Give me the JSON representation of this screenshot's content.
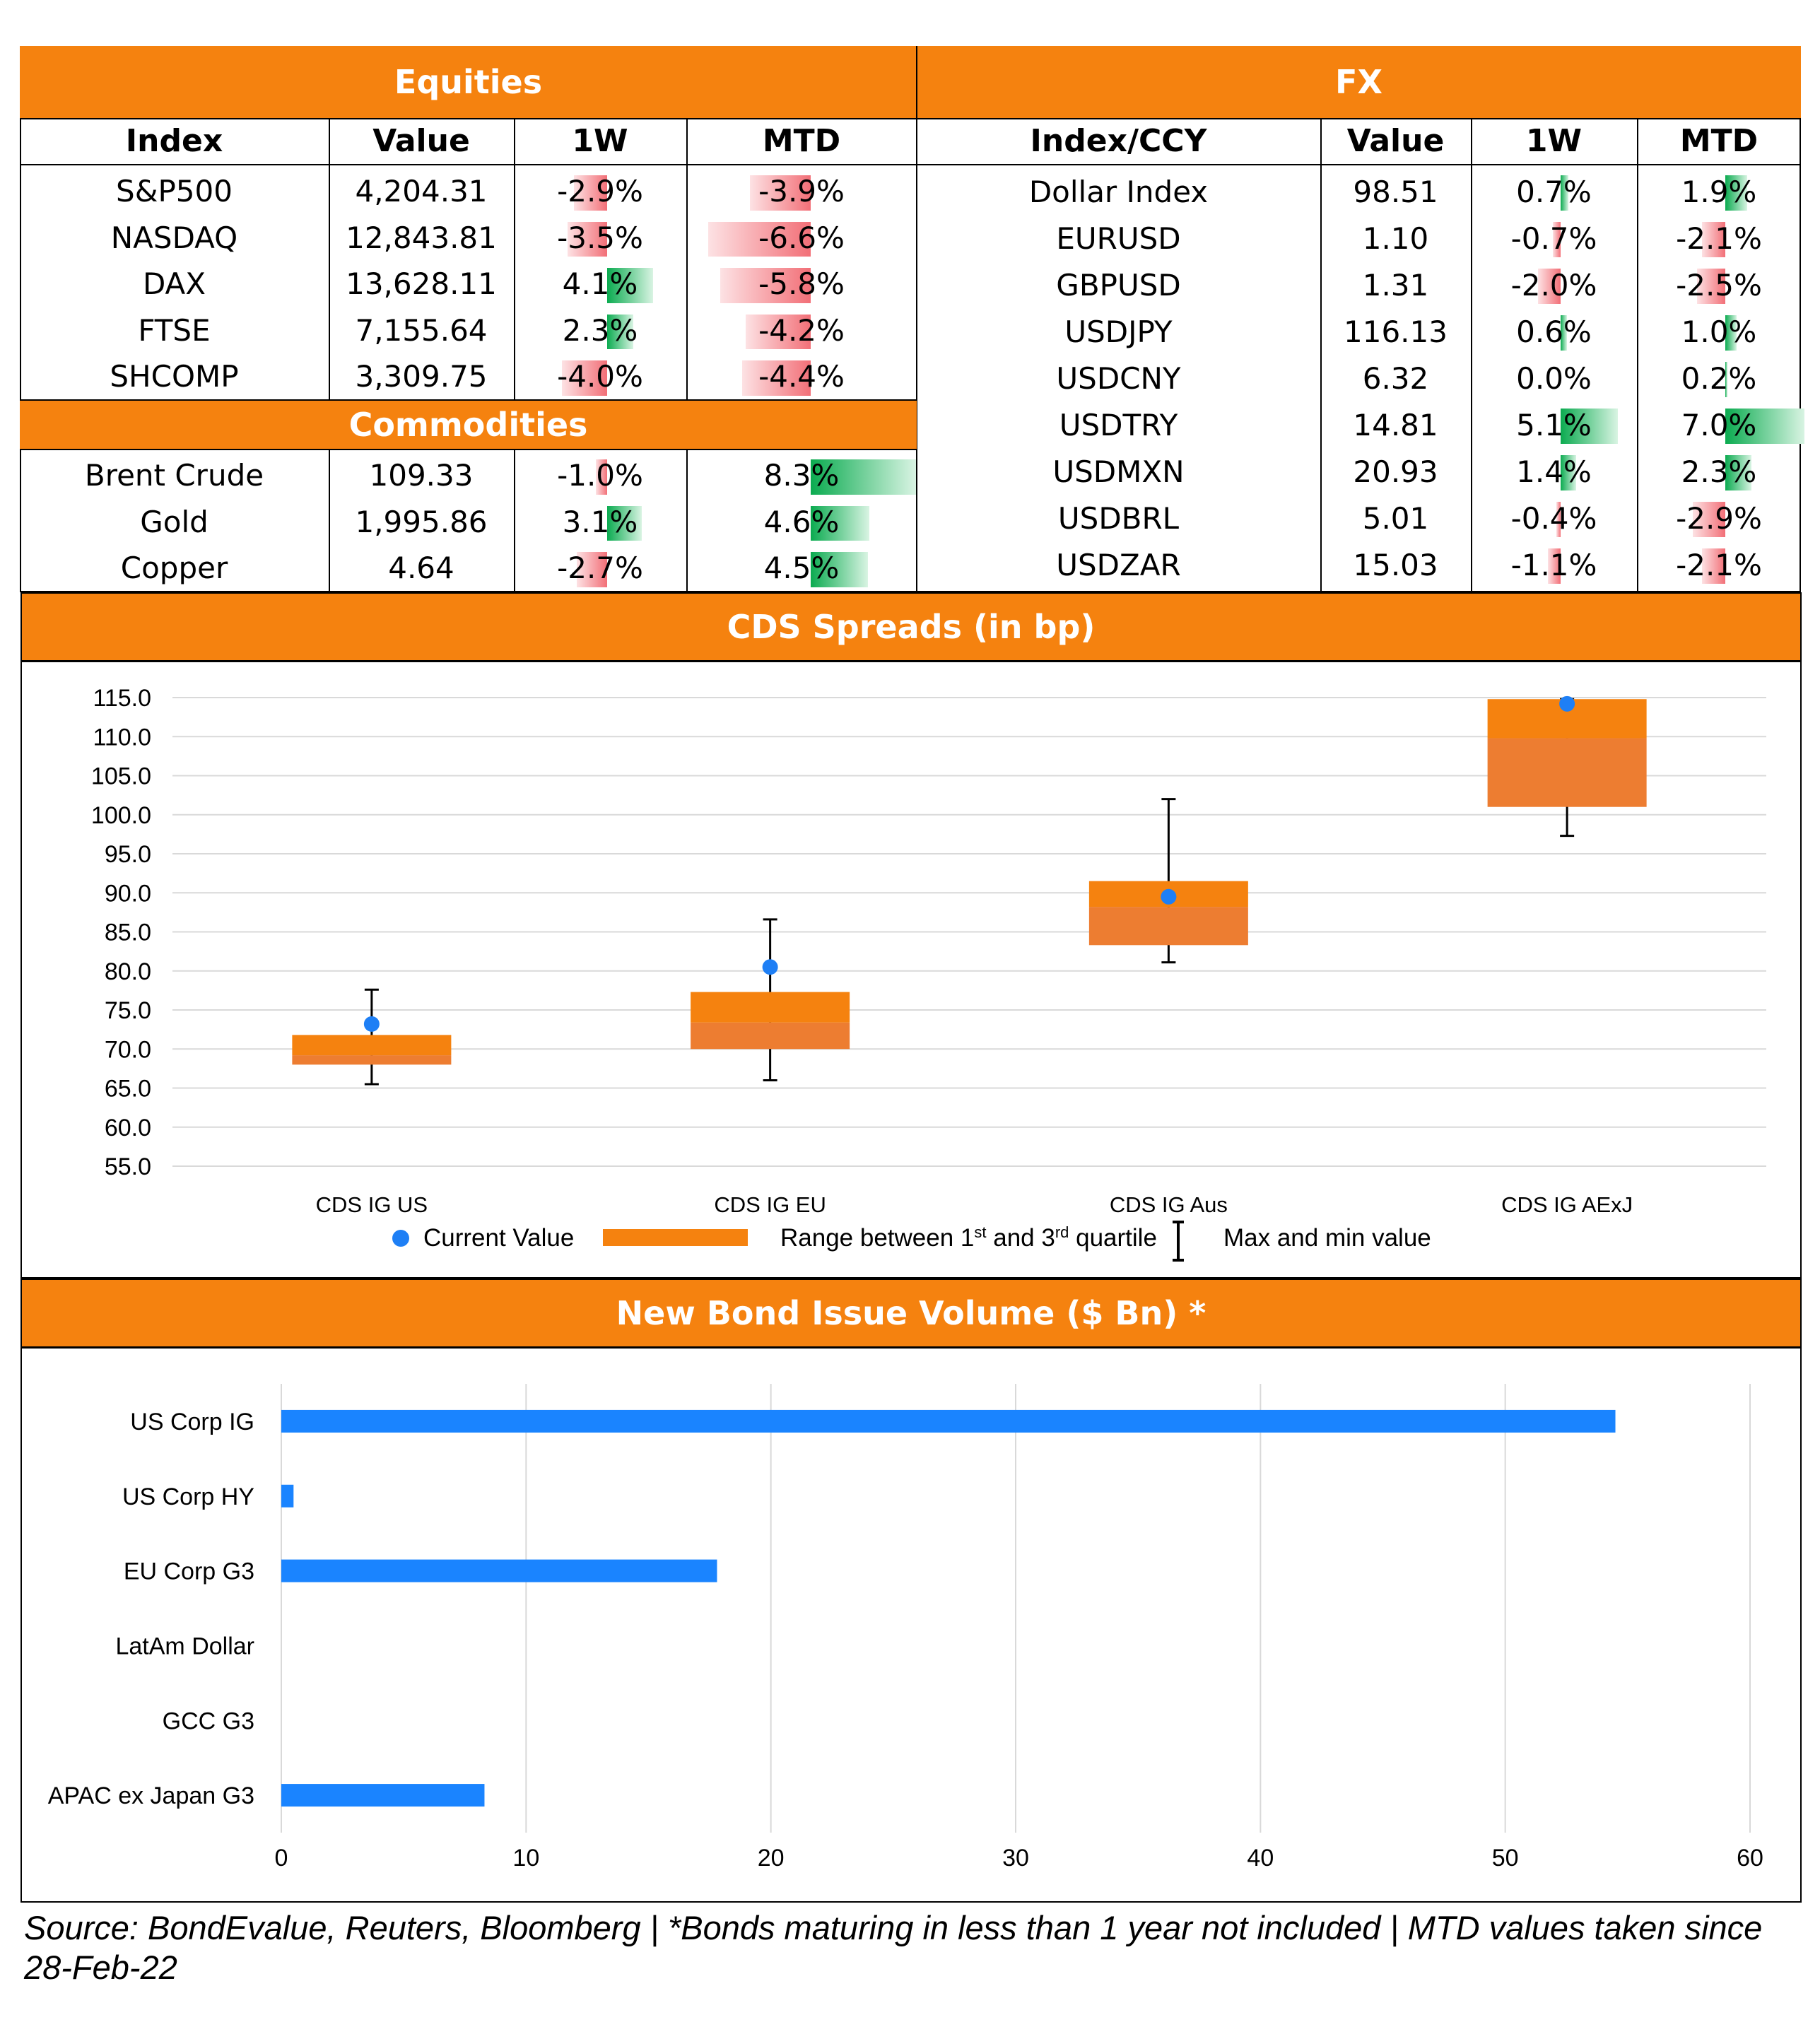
{
  "equities": {
    "title": "Equities",
    "columns": [
      "Index",
      "Value",
      "1W",
      "MTD"
    ],
    "rows": [
      {
        "name": "S&P500",
        "value": "4,204.31",
        "w1": "-2.9%",
        "mtd": "-3.9%",
        "w1v": -2.9,
        "mtdv": -3.9
      },
      {
        "name": "NASDAQ",
        "value": "12,843.81",
        "w1": "-3.5%",
        "mtd": "-6.6%",
        "w1v": -3.5,
        "mtdv": -6.6
      },
      {
        "name": "DAX",
        "value": "13,628.11",
        "w1": "4.1%",
        "mtd": "-5.8%",
        "w1v": 4.1,
        "mtdv": -5.8
      },
      {
        "name": "FTSE",
        "value": "7,155.64",
        "w1": "2.3%",
        "mtd": "-4.2%",
        "w1v": 2.3,
        "mtdv": -4.2
      },
      {
        "name": "SHCOMP",
        "value": "3,309.75",
        "w1": "-4.0%",
        "mtd": "-4.4%",
        "w1v": -4.0,
        "mtdv": -4.4
      }
    ]
  },
  "commodities": {
    "title": "Commodities",
    "rows": [
      {
        "name": "Brent Crude",
        "value": "109.33",
        "w1": "-1.0%",
        "mtd": "8.3%",
        "w1v": -1.0,
        "mtdv": 8.3
      },
      {
        "name": "Gold",
        "value": "1,995.86",
        "w1": "3.1%",
        "mtd": "4.6%",
        "w1v": 3.1,
        "mtdv": 4.6
      },
      {
        "name": "Copper",
        "value": "4.64",
        "w1": "-2.7%",
        "mtd": "4.5%",
        "w1v": -2.7,
        "mtdv": 4.5
      }
    ]
  },
  "fx": {
    "title": "FX",
    "columns": [
      "Index/CCY",
      "Value",
      "1W",
      "MTD"
    ],
    "rows": [
      {
        "name": "Dollar Index",
        "value": "98.51",
        "w1": "0.7%",
        "mtd": "1.9%",
        "w1v": 0.7,
        "mtdv": 1.9
      },
      {
        "name": "EURUSD",
        "value": "1.10",
        "w1": "-0.7%",
        "mtd": "-2.1%",
        "w1v": -0.7,
        "mtdv": -2.1
      },
      {
        "name": "GBPUSD",
        "value": "1.31",
        "w1": "-2.0%",
        "mtd": "-2.5%",
        "w1v": -2.0,
        "mtdv": -2.5
      },
      {
        "name": "USDJPY",
        "value": "116.13",
        "w1": "0.6%",
        "mtd": "1.0%",
        "w1v": 0.6,
        "mtdv": 1.0
      },
      {
        "name": "USDCNY",
        "value": "6.32",
        "w1": "0.0%",
        "mtd": "0.2%",
        "w1v": 0.0,
        "mtdv": 0.2
      },
      {
        "name": "USDTRY",
        "value": "14.81",
        "w1": "5.1%",
        "mtd": "7.0%",
        "w1v": 5.1,
        "mtdv": 7.0
      },
      {
        "name": "USDMXN",
        "value": "20.93",
        "w1": "1.4%",
        "mtd": "2.3%",
        "w1v": 1.4,
        "mtdv": 2.3
      },
      {
        "name": "USDBRL",
        "value": "5.01",
        "w1": "-0.4%",
        "mtd": "-2.9%",
        "w1v": -0.4,
        "mtdv": -2.9
      },
      {
        "name": "USDZAR",
        "value": "15.03",
        "w1": "-1.1%",
        "mtd": "-2.1%",
        "w1v": -1.1,
        "mtdv": -2.1
      }
    ]
  },
  "colors": {
    "header_orange": "#f5820f",
    "box_orange": "#ed7d31",
    "point_blue": "#1e7ff5",
    "bar_blue": "#1a84ff",
    "positive_green": "#0bab50",
    "negative_red": "#f26f77"
  },
  "chart_data": [
    {
      "type": "box",
      "title": "CDS Spreads (in bp)",
      "categories": [
        "CDS IG US",
        "CDS IG EU",
        "CDS IG Aus",
        "CDS IG AExJ"
      ],
      "q1": [
        68.0,
        70.0,
        83.3,
        101.0
      ],
      "median": [
        69.2,
        73.4,
        88.2,
        109.8
      ],
      "q3": [
        71.8,
        77.3,
        91.5,
        114.8
      ],
      "min": [
        65.5,
        66.0,
        81.1,
        97.3
      ],
      "max": [
        77.6,
        86.6,
        102.0,
        114.8
      ],
      "current": [
        73.2,
        80.5,
        89.5,
        114.2
      ],
      "ylim": [
        55.0,
        115.0
      ],
      "yticks": [
        "115.0",
        "110.0",
        "105.0",
        "100.0",
        "95.0",
        "90.0",
        "85.0",
        "80.0",
        "75.0",
        "70.0",
        "65.0",
        "60.0",
        "55.0"
      ],
      "grid": true,
      "legend": {
        "current": "Current Value",
        "range_prefix": "Range between 1",
        "range_sup1": "st",
        "range_mid": " and 3",
        "range_sup2": "rd",
        "range_suffix": " quartile",
        "maxmin": "Max and min value",
        "position": "bottom"
      }
    },
    {
      "type": "bar",
      "orientation": "horizontal",
      "title": "New Bond Issue Volume ($ Bn) *",
      "categories": [
        "US Corp IG",
        "US Corp HY",
        "EU Corp G3",
        "LatAm Dollar",
        "GCC G3",
        "APAC ex Japan G3"
      ],
      "values": [
        54.5,
        0.5,
        17.8,
        0.0,
        0.0,
        8.3
      ],
      "xlim": [
        0,
        60
      ],
      "xticks": [
        "0",
        "10",
        "20",
        "30",
        "40",
        "50",
        "60"
      ],
      "grid": true
    }
  ],
  "source": "Source: BondEvalue, Reuters, Bloomberg | *Bonds maturing in less than 1 year not included | MTD values taken since 28-Feb-22"
}
